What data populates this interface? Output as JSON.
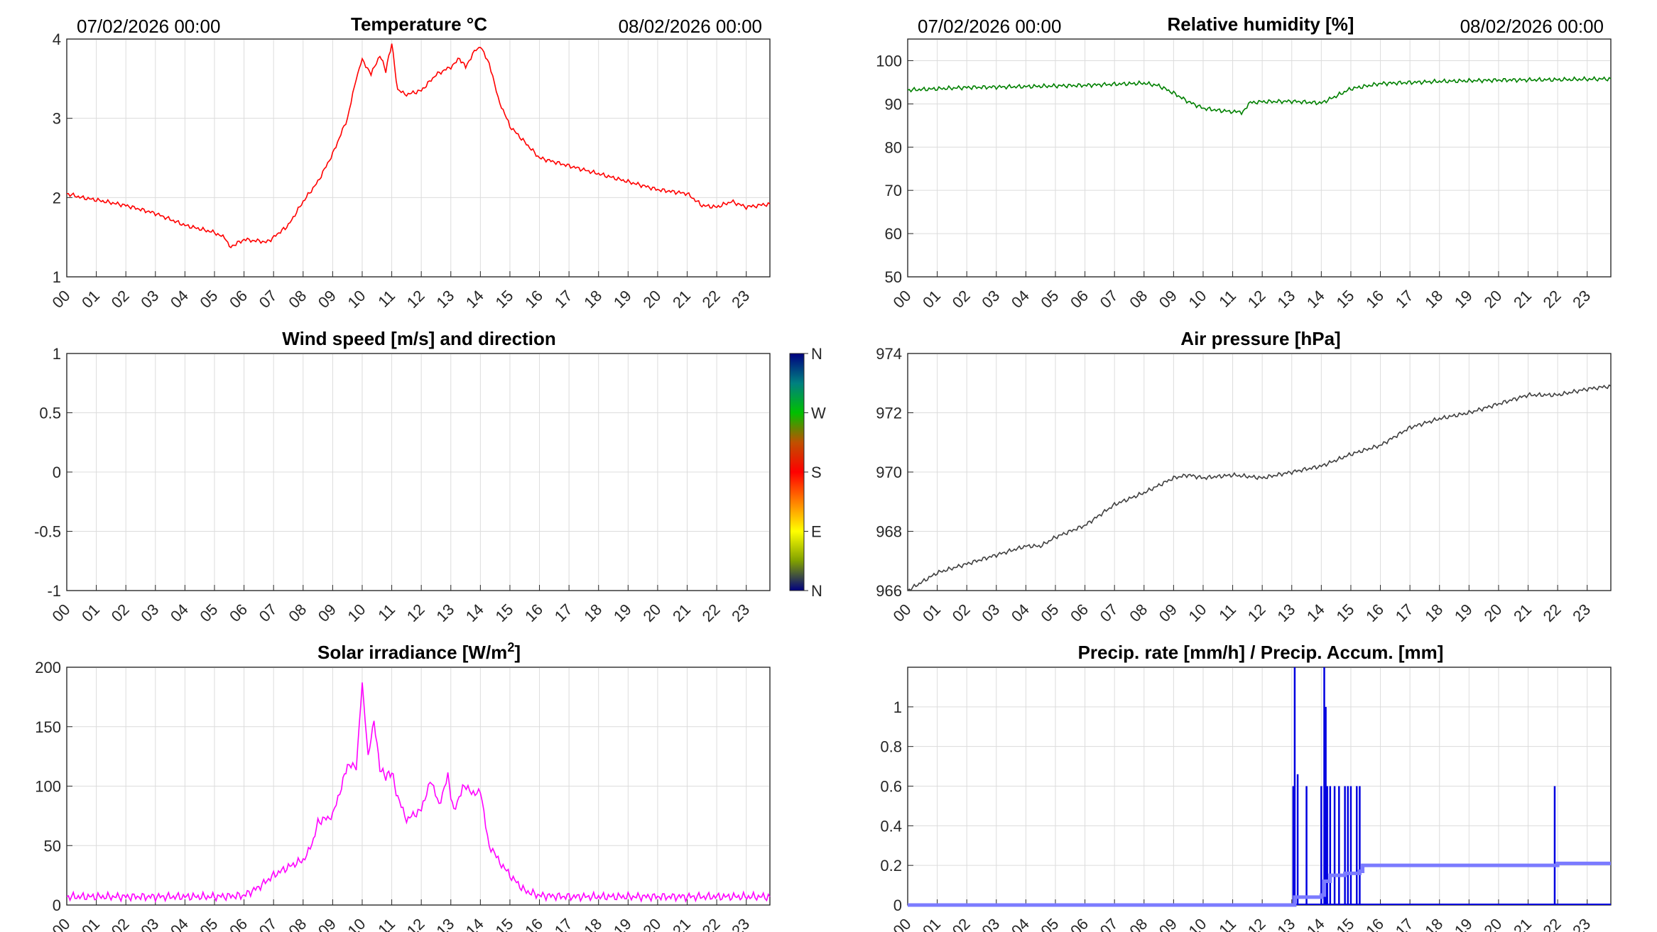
{
  "header": {
    "start_date": "07/02/2026 00:00",
    "end_date": "08/02/2026 00:00"
  },
  "hours": [
    "00",
    "01",
    "02",
    "03",
    "04",
    "05",
    "06",
    "07",
    "08",
    "09",
    "10",
    "11",
    "12",
    "13",
    "14",
    "15",
    "16",
    "17",
    "18",
    "19",
    "20",
    "21",
    "22",
    "23"
  ],
  "chart_data": [
    {
      "id": "temperature",
      "type": "line",
      "title": "Temperature °C",
      "color": "#ff0000",
      "ylim": [
        1,
        4
      ],
      "yticks": [
        "1",
        "2",
        "3",
        "4"
      ],
      "ytick_values": [
        1,
        2,
        3,
        4
      ],
      "grid": true,
      "series": [
        {
          "x": [
            0,
            0.5,
            1,
            2,
            3,
            4,
            5,
            5.4,
            5.5,
            6,
            6.8,
            7.5,
            8,
            8.5,
            9,
            9.5,
            9.8,
            10,
            10.3,
            10.6,
            10.8,
            11,
            11.2,
            11.5,
            12,
            12.5,
            13,
            13.3,
            13.5,
            13.8,
            14,
            14.3,
            14.6,
            15,
            15.5,
            16,
            17,
            18,
            19,
            20,
            21,
            21.5,
            22,
            22.5,
            23,
            23.8
          ],
          "y": [
            2.05,
            2.0,
            1.97,
            1.9,
            1.8,
            1.65,
            1.56,
            1.48,
            1.37,
            1.47,
            1.44,
            1.65,
            1.95,
            2.2,
            2.55,
            3.0,
            3.5,
            3.75,
            3.55,
            3.8,
            3.6,
            3.95,
            3.35,
            3.3,
            3.35,
            3.55,
            3.65,
            3.75,
            3.65,
            3.85,
            3.9,
            3.7,
            3.25,
            2.9,
            2.7,
            2.5,
            2.4,
            2.3,
            2.2,
            2.1,
            2.05,
            1.9,
            1.88,
            1.95,
            1.88,
            1.92
          ]
        }
      ]
    },
    {
      "id": "humidity",
      "type": "line",
      "title": "Relative humidity [%]",
      "color": "#008000",
      "ylim": [
        50,
        105
      ],
      "yticks": [
        "50",
        "60",
        "70",
        "80",
        "90",
        "100"
      ],
      "ytick_values": [
        50,
        60,
        70,
        80,
        90,
        100
      ],
      "grid": true,
      "series": [
        {
          "x": [
            0,
            2,
            4,
            6,
            8,
            8.5,
            9,
            9.5,
            10,
            10.5,
            11,
            11.3,
            11.6,
            12,
            13,
            13.5,
            14,
            14.5,
            15,
            16,
            18,
            20,
            22,
            23.8
          ],
          "y": [
            93.2,
            93.8,
            94,
            94.3,
            94.8,
            94.2,
            92.5,
            90.5,
            89,
            88.5,
            88.2,
            88,
            90.3,
            90.5,
            90.6,
            90.4,
            90.2,
            91.8,
            93.5,
            94.7,
            95.2,
            95.5,
            95.6,
            95.8
          ]
        }
      ]
    },
    {
      "id": "wind",
      "type": "line",
      "title": "Wind speed [m/s] and direction",
      "ylim": [
        -1,
        1
      ],
      "yticks": [
        "-1",
        "-0.5",
        "0",
        "0.5",
        "1"
      ],
      "ytick_values": [
        -1,
        -0.5,
        0,
        0.5,
        1
      ],
      "grid": true,
      "series": [],
      "colorbar": {
        "labels": [
          "N",
          "E",
          "S",
          "W",
          "N"
        ]
      }
    },
    {
      "id": "pressure",
      "type": "line",
      "title": "Air pressure [hPa]",
      "color": "#404040",
      "ylim": [
        966,
        974
      ],
      "yticks": [
        "966",
        "968",
        "970",
        "972",
        "974"
      ],
      "ytick_values": [
        966,
        968,
        970,
        972,
        974
      ],
      "grid": true,
      "series": [
        {
          "x": [
            0,
            1,
            2,
            3,
            4,
            4.5,
            5,
            6,
            7,
            8,
            9,
            9.5,
            10,
            11,
            12,
            13,
            14,
            15,
            16,
            17,
            18,
            19,
            20,
            21,
            22,
            23,
            23.8
          ],
          "y": [
            966,
            966.6,
            966.9,
            967.2,
            967.5,
            967.5,
            967.8,
            968.2,
            968.9,
            969.3,
            969.8,
            969.9,
            969.8,
            969.9,
            969.8,
            970,
            970.2,
            970.6,
            970.9,
            971.5,
            971.8,
            972,
            972.3,
            972.6,
            972.6,
            972.8,
            972.9
          ]
        }
      ]
    },
    {
      "id": "solar",
      "type": "line",
      "title": "Solar irradiance [W/m²]",
      "color": "#ff00ff",
      "ylim": [
        0,
        200
      ],
      "yticks": [
        "0",
        "50",
        "100",
        "150",
        "200"
      ],
      "ytick_values": [
        0,
        50,
        100,
        150,
        200
      ],
      "grid": true,
      "series": [
        {
          "x": [
            0,
            5,
            6,
            6.5,
            7,
            7.5,
            8,
            8.3,
            8.5,
            9,
            9.3,
            9.5,
            9.8,
            10,
            10.2,
            10.4,
            10.6,
            10.8,
            11,
            11.2,
            11.5,
            12,
            12.3,
            12.6,
            12.9,
            13.1,
            13.4,
            13.7,
            14,
            14.3,
            14.6,
            15,
            15.5,
            16,
            17,
            20,
            23.8
          ],
          "y": [
            7,
            7,
            8,
            15,
            25,
            32,
            38,
            50,
            70,
            75,
            100,
            118,
            115,
            187,
            125,
            155,
            115,
            108,
            112,
            90,
            72,
            80,
            105,
            85,
            108,
            78,
            100,
            95,
            95,
            50,
            38,
            25,
            12,
            8,
            7,
            7,
            7
          ]
        }
      ]
    },
    {
      "id": "precip",
      "type": "line",
      "title": "Precip. rate [mm/h] / Precip. Accum. [mm]",
      "color": "#0000e0",
      "accum_color": "#7b7bff",
      "ylim": [
        0,
        1.2
      ],
      "yticks": [
        "0",
        "0.2",
        "0.4",
        "0.6",
        "0.8",
        "1"
      ],
      "ytick_values": [
        0,
        0.2,
        0.4,
        0.6,
        0.8,
        1
      ],
      "grid": true,
      "series": [
        {
          "name": "",
          "x": [
            13.05,
            13.1,
            13.2,
            13.5,
            14.0,
            14.1,
            14.15,
            14.2,
            14.3,
            14.45,
            14.6,
            14.8,
            14.9,
            15.0,
            15.2,
            15.3,
            21.9
          ],
          "y": [
            0.6,
            1.2,
            0.66,
            0.6,
            0.6,
            1.2,
            1.0,
            0.6,
            0.6,
            0.6,
            0.6,
            0.6,
            0.6,
            0.6,
            0.6,
            0.6,
            0.6
          ]
        },
        {
          "name": "",
          "x": [
            0,
            13.0,
            13.1,
            14.0,
            14.1,
            14.3,
            14.8,
            15.3,
            15.4,
            21.9,
            22.0,
            23.8
          ],
          "y": [
            0,
            0,
            0.04,
            0.05,
            0.12,
            0.15,
            0.16,
            0.17,
            0.2,
            0.2,
            0.21,
            0.21
          ]
        }
      ]
    }
  ]
}
